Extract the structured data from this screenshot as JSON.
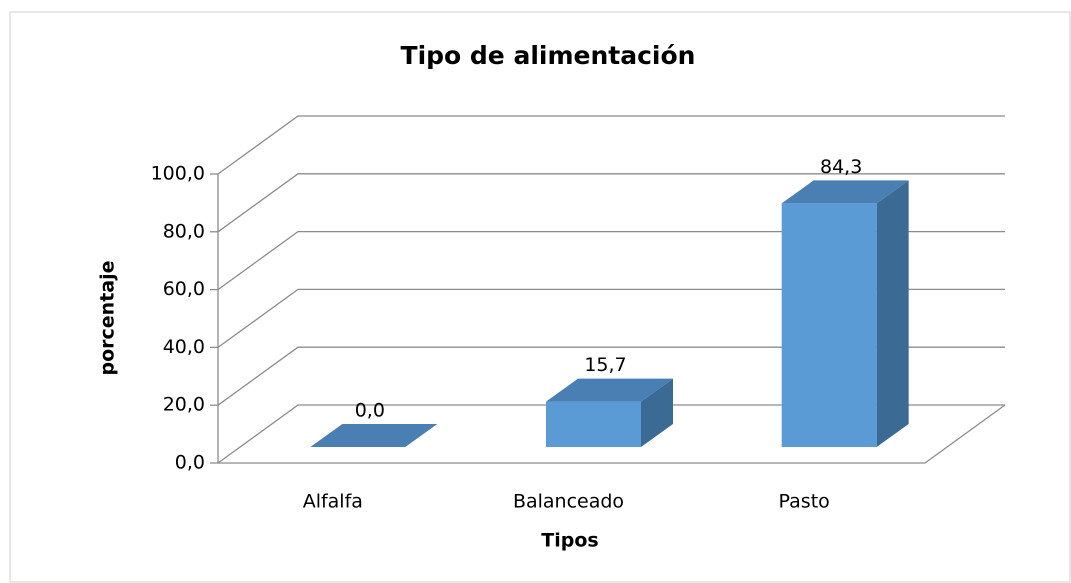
{
  "chart_data": {
    "type": "bar3d",
    "title": "Tipo de alimentación",
    "x_label": "Tipos",
    "y_label": "porcentaje",
    "categories": [
      "Alfalfa",
      "Balanceado",
      "Pasto"
    ],
    "values": [
      0,
      15.7,
      84.3
    ],
    "value_labels": [
      "0,0",
      "15,7",
      "84,3"
    ],
    "color": "#5b9bd5",
    "ylim": [
      0,
      100
    ],
    "yticks": [
      {
        "value": 0,
        "label": "0,0"
      },
      {
        "value": 20,
        "label": "20,0"
      },
      {
        "value": 40,
        "label": "40,0"
      },
      {
        "value": 60,
        "label": "60,0"
      },
      {
        "value": 80,
        "label": "80,0"
      },
      {
        "value": 100,
        "label": "100,0"
      }
    ],
    "grid": true
  }
}
